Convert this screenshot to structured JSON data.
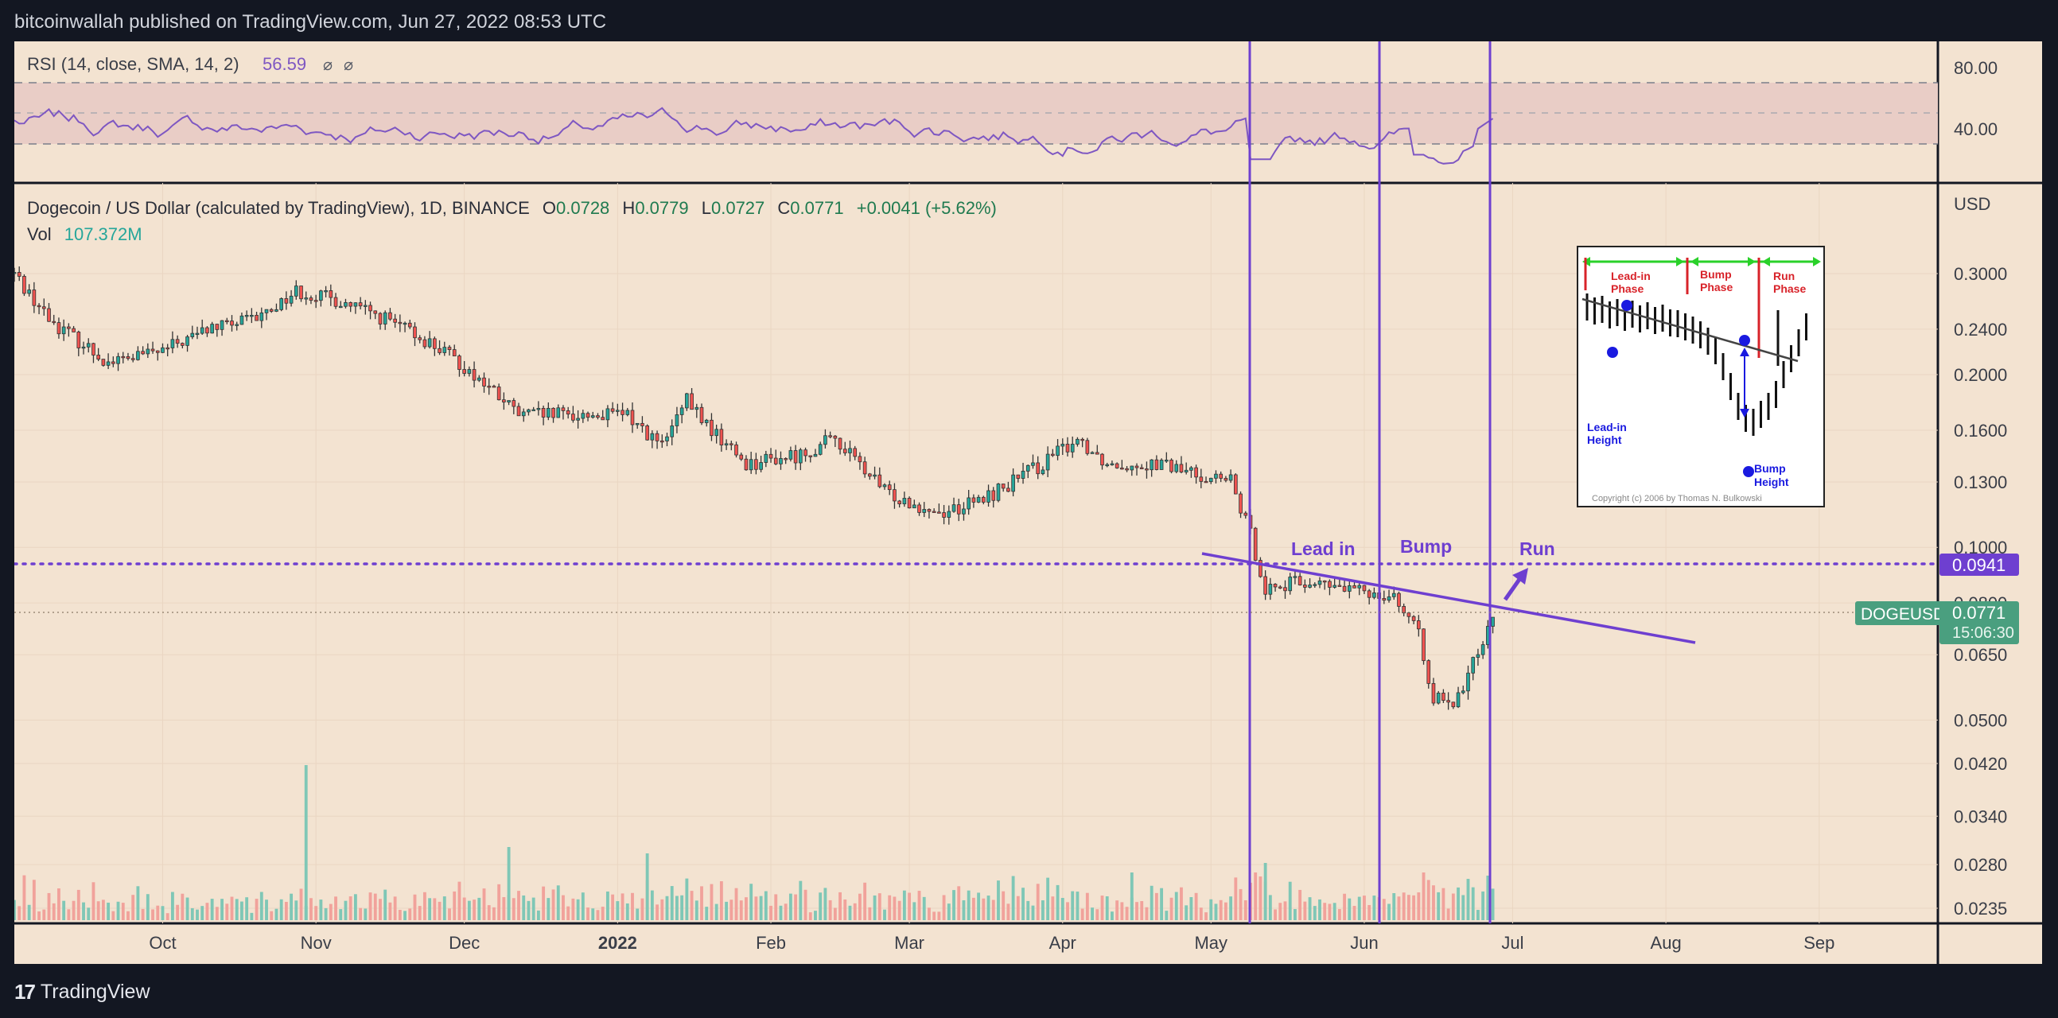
{
  "header": {
    "published": "bitcoinwallah published on TradingView.com, Jun 27, 2022 08:53 UTC"
  },
  "footer": {
    "brand": "TradingView",
    "logo_text": "17"
  },
  "colors": {
    "background": "#f3e3d1",
    "frame": "#131722",
    "up": "#26a69a",
    "down": "#ef5350",
    "annotation": "#6e3fd0",
    "rsi_line": "#7e57c2",
    "price_tag": "#4a9f7f"
  },
  "rsi": {
    "label": "RSI (14, close, SMA, 14, 2)",
    "value": "56.59",
    "icons": [
      "⌀",
      "⌀"
    ],
    "axis_labels": [
      "80.00",
      "40.00"
    ]
  },
  "main": {
    "symbol_text": "Dogecoin / US Dollar (calculated by TradingView), 1D, BINANCE",
    "ohlc": {
      "o_label": "O",
      "o": "0.0728",
      "h_label": "H",
      "h": "0.0779",
      "l_label": "L",
      "l": "0.0727",
      "c_label": "C",
      "c": "0.0771",
      "change": "+0.0041 (+5.62%)"
    },
    "vol_label": "Vol",
    "vol_value": "107.372M",
    "currency": "USD",
    "price_tags": {
      "level": "0.0941",
      "symbol": "DOGEUSD",
      "last": "0.0771",
      "countdown": "15:06:30"
    }
  },
  "annotations": {
    "lead_in": "Lead in",
    "bump": "Bump",
    "run": "Run"
  },
  "inset": {
    "lead_phase": "Lead-in\nPhase",
    "bump_phase": "Bump\nPhase",
    "run_phase": "Run\nPhase",
    "lead_height": "Lead-in\nHeight",
    "bump_height": "Bump\nHeight",
    "copyright": "Copyright (c) 2006 by Thomas N. Bulkowski"
  },
  "chart_data": {
    "type": "candlestick",
    "symbol": "DOGEUSD",
    "price_axis": {
      "scale": "log",
      "labels": [
        "0.3000",
        "0.2400",
        "0.2000",
        "0.1600",
        "0.1300",
        "0.1000",
        "0.0800",
        "0.0650",
        "0.0500",
        "0.0420",
        "0.0340",
        "0.0280",
        "0.0235"
      ]
    },
    "time_axis": {
      "labels": [
        "Oct",
        "Nov",
        "Dec",
        "2022",
        "Feb",
        "Mar",
        "Apr",
        "May",
        "Jun",
        "Jul",
        "Aug",
        "Sep"
      ]
    },
    "close_path": [
      {
        "date": "2021-09-01",
        "close": 0.3
      },
      {
        "date": "2021-09-08",
        "close": 0.25
      },
      {
        "date": "2021-09-20",
        "close": 0.21
      },
      {
        "date": "2021-10-01",
        "close": 0.22
      },
      {
        "date": "2021-10-10",
        "close": 0.24
      },
      {
        "date": "2021-10-20",
        "close": 0.25
      },
      {
        "date": "2021-10-28",
        "close": 0.28
      },
      {
        "date": "2021-11-05",
        "close": 0.27
      },
      {
        "date": "2021-11-15",
        "close": 0.25
      },
      {
        "date": "2021-11-25",
        "close": 0.225
      },
      {
        "date": "2021-12-03",
        "close": 0.2
      },
      {
        "date": "2021-12-12",
        "close": 0.17
      },
      {
        "date": "2021-12-22",
        "close": 0.17
      },
      {
        "date": "2022-01-03",
        "close": 0.17
      },
      {
        "date": "2022-01-10",
        "close": 0.15
      },
      {
        "date": "2022-01-15",
        "close": 0.18
      },
      {
        "date": "2022-01-20",
        "close": 0.16
      },
      {
        "date": "2022-01-27",
        "close": 0.14
      },
      {
        "date": "2022-02-07",
        "close": 0.145
      },
      {
        "date": "2022-02-14",
        "close": 0.155
      },
      {
        "date": "2022-02-24",
        "close": 0.125
      },
      {
        "date": "2022-03-07",
        "close": 0.115
      },
      {
        "date": "2022-03-15",
        "close": 0.12
      },
      {
        "date": "2022-03-28",
        "close": 0.14
      },
      {
        "date": "2022-04-04",
        "close": 0.155
      },
      {
        "date": "2022-04-10",
        "close": 0.14
      },
      {
        "date": "2022-04-20",
        "close": 0.14
      },
      {
        "date": "2022-04-27",
        "close": 0.135
      },
      {
        "date": "2022-05-05",
        "close": 0.13
      },
      {
        "date": "2022-05-09",
        "close": 0.105
      },
      {
        "date": "2022-05-12",
        "close": 0.085
      },
      {
        "date": "2022-05-20",
        "close": 0.087
      },
      {
        "date": "2022-05-30",
        "close": 0.084
      },
      {
        "date": "2022-06-07",
        "close": 0.083
      },
      {
        "date": "2022-06-12",
        "close": 0.07
      },
      {
        "date": "2022-06-15",
        "close": 0.055
      },
      {
        "date": "2022-06-19",
        "close": 0.052
      },
      {
        "date": "2022-06-23",
        "close": 0.063
      },
      {
        "date": "2022-06-27",
        "close": 0.0771
      }
    ],
    "levels": {
      "horizontal": 0.0941
    },
    "trendline": [
      {
        "date": "2022-05-03",
        "price": 0.101
      },
      {
        "date": "2022-08-10",
        "price": 0.067
      }
    ],
    "rsi_last": 56.59,
    "rsi_bands": [
      70,
      50,
      30
    ]
  }
}
